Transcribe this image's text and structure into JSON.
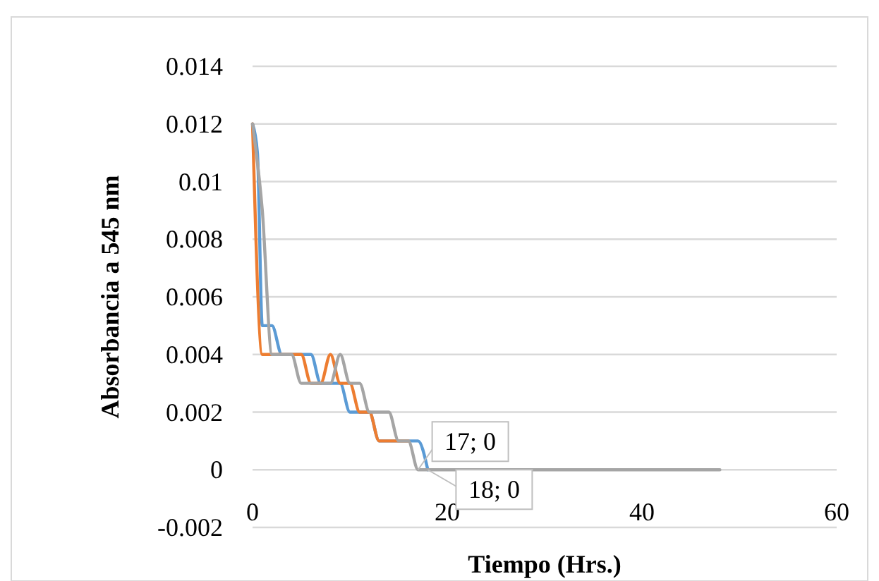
{
  "chart_data": {
    "type": "line",
    "xlabel": "Tiempo (Hrs.)",
    "ylabel": "Absorbancia a 545 nm",
    "xlim": [
      0,
      60
    ],
    "xticks": [
      0,
      20,
      40,
      60
    ],
    "ylim": [
      -0.002,
      0.014
    ],
    "yticks": [
      -0.002,
      0,
      0.002,
      0.004,
      0.006,
      0.008,
      0.01,
      0.012,
      0.014
    ],
    "grid": "y",
    "marker": "none",
    "line_style": "solid",
    "series": [
      {
        "color": "#5b9bd5",
        "x": [
          0,
          0.5,
          1,
          2,
          3,
          4,
          5,
          6,
          7,
          8,
          9,
          10,
          11,
          12,
          13,
          14,
          15,
          16,
          17,
          18
        ],
        "values": [
          0.012,
          0.011,
          0.005,
          0.005,
          0.004,
          0.004,
          0.004,
          0.004,
          0.003,
          0.003,
          0.003,
          0.002,
          0.002,
          0.002,
          0.001,
          0.001,
          0.001,
          0.001,
          0.001,
          0
        ]
      },
      {
        "color": "#ed7d31",
        "x": [
          0,
          1,
          2,
          3,
          4,
          5,
          6,
          7,
          8,
          9,
          10,
          11,
          12,
          13,
          14,
          15,
          16
        ],
        "values": [
          0.012,
          0.004,
          0.004,
          0.004,
          0.004,
          0.004,
          0.003,
          0.003,
          0.004,
          0.003,
          0.003,
          0.002,
          0.002,
          0.001,
          0.001,
          0.001,
          0.001
        ]
      },
      {
        "color": "#a5a5a5",
        "x": [
          0,
          1,
          2,
          3,
          4,
          5,
          6,
          7,
          8,
          9,
          10,
          11,
          12,
          13,
          14,
          15,
          16,
          17,
          24,
          30,
          36,
          42,
          48
        ],
        "values": [
          0.012,
          0.009,
          0.004,
          0.004,
          0.004,
          0.003,
          0.003,
          0.003,
          0.003,
          0.004,
          0.003,
          0.003,
          0.002,
          0.002,
          0.002,
          0.001,
          0.001,
          0,
          0,
          0,
          0,
          0,
          0
        ]
      }
    ],
    "annotations": [
      {
        "text": "17; 0",
        "x": 17,
        "y": 0
      },
      {
        "text": "18; 0",
        "x": 18,
        "y": 0
      }
    ]
  }
}
